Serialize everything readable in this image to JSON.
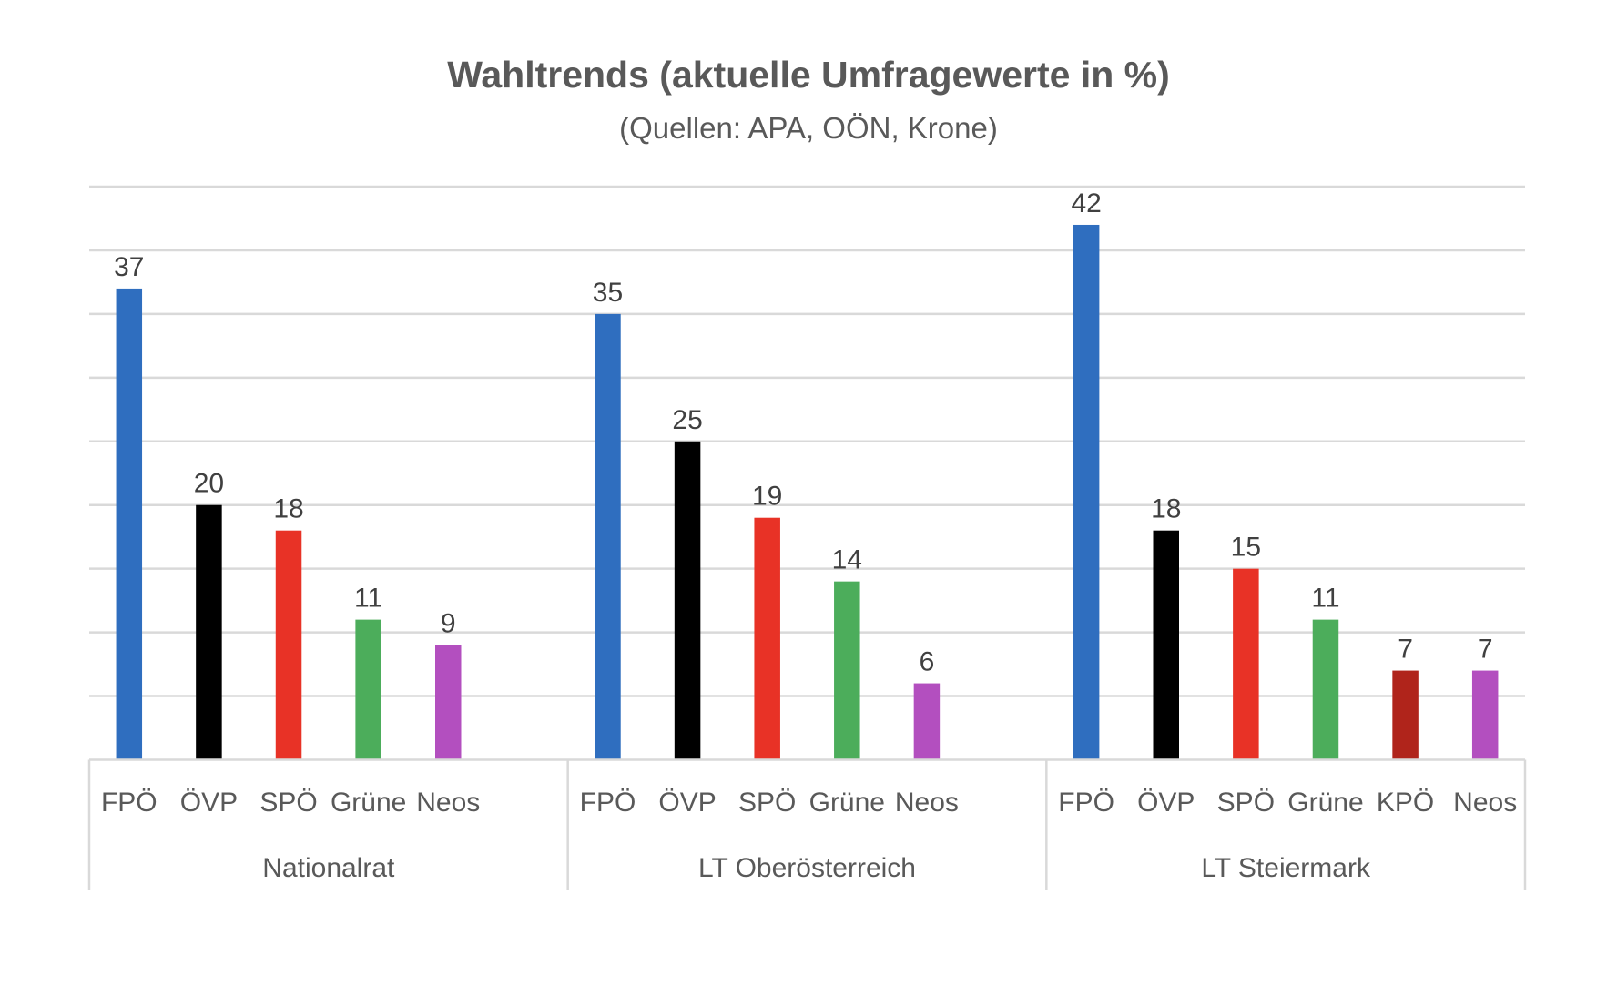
{
  "chart_data": {
    "type": "bar",
    "title": "Wahltrends (aktuelle Umfragewerte in %)",
    "subtitle": "(Quellen: APA, OÖN, Krone)",
    "xlabel": "",
    "ylabel": "",
    "ylim": [
      0,
      45
    ],
    "grid": true,
    "y_tick_step": 5,
    "legend": "none",
    "groups": [
      {
        "name": "Nationalrat",
        "bars": [
          {
            "party": "FPÖ",
            "value": 37,
            "color": "#2f6ebf"
          },
          {
            "party": "ÖVP",
            "value": 20,
            "color": "#000000"
          },
          {
            "party": "SPÖ",
            "value": 18,
            "color": "#e83226"
          },
          {
            "party": "Grüne",
            "value": 11,
            "color": "#4cad5b"
          },
          {
            "party": "Neos",
            "value": 9,
            "color": "#b34fbf"
          }
        ]
      },
      {
        "name": "LT Oberösterreich",
        "bars": [
          {
            "party": "FPÖ",
            "value": 35,
            "color": "#2f6ebf"
          },
          {
            "party": "ÖVP",
            "value": 25,
            "color": "#000000"
          },
          {
            "party": "SPÖ",
            "value": 19,
            "color": "#e83226"
          },
          {
            "party": "Grüne",
            "value": 14,
            "color": "#4cad5b"
          },
          {
            "party": "Neos",
            "value": 6,
            "color": "#b34fbf"
          }
        ]
      },
      {
        "name": "LT Steiermark",
        "bars": [
          {
            "party": "FPÖ",
            "value": 42,
            "color": "#2f6ebf"
          },
          {
            "party": "ÖVP",
            "value": 18,
            "color": "#000000"
          },
          {
            "party": "SPÖ",
            "value": 15,
            "color": "#e83226"
          },
          {
            "party": "Grüne",
            "value": 11,
            "color": "#4cad5b"
          },
          {
            "party": "KPÖ",
            "value": 7,
            "color": "#b0241b"
          },
          {
            "party": "Neos",
            "value": 7,
            "color": "#b34fbf"
          }
        ]
      }
    ]
  }
}
